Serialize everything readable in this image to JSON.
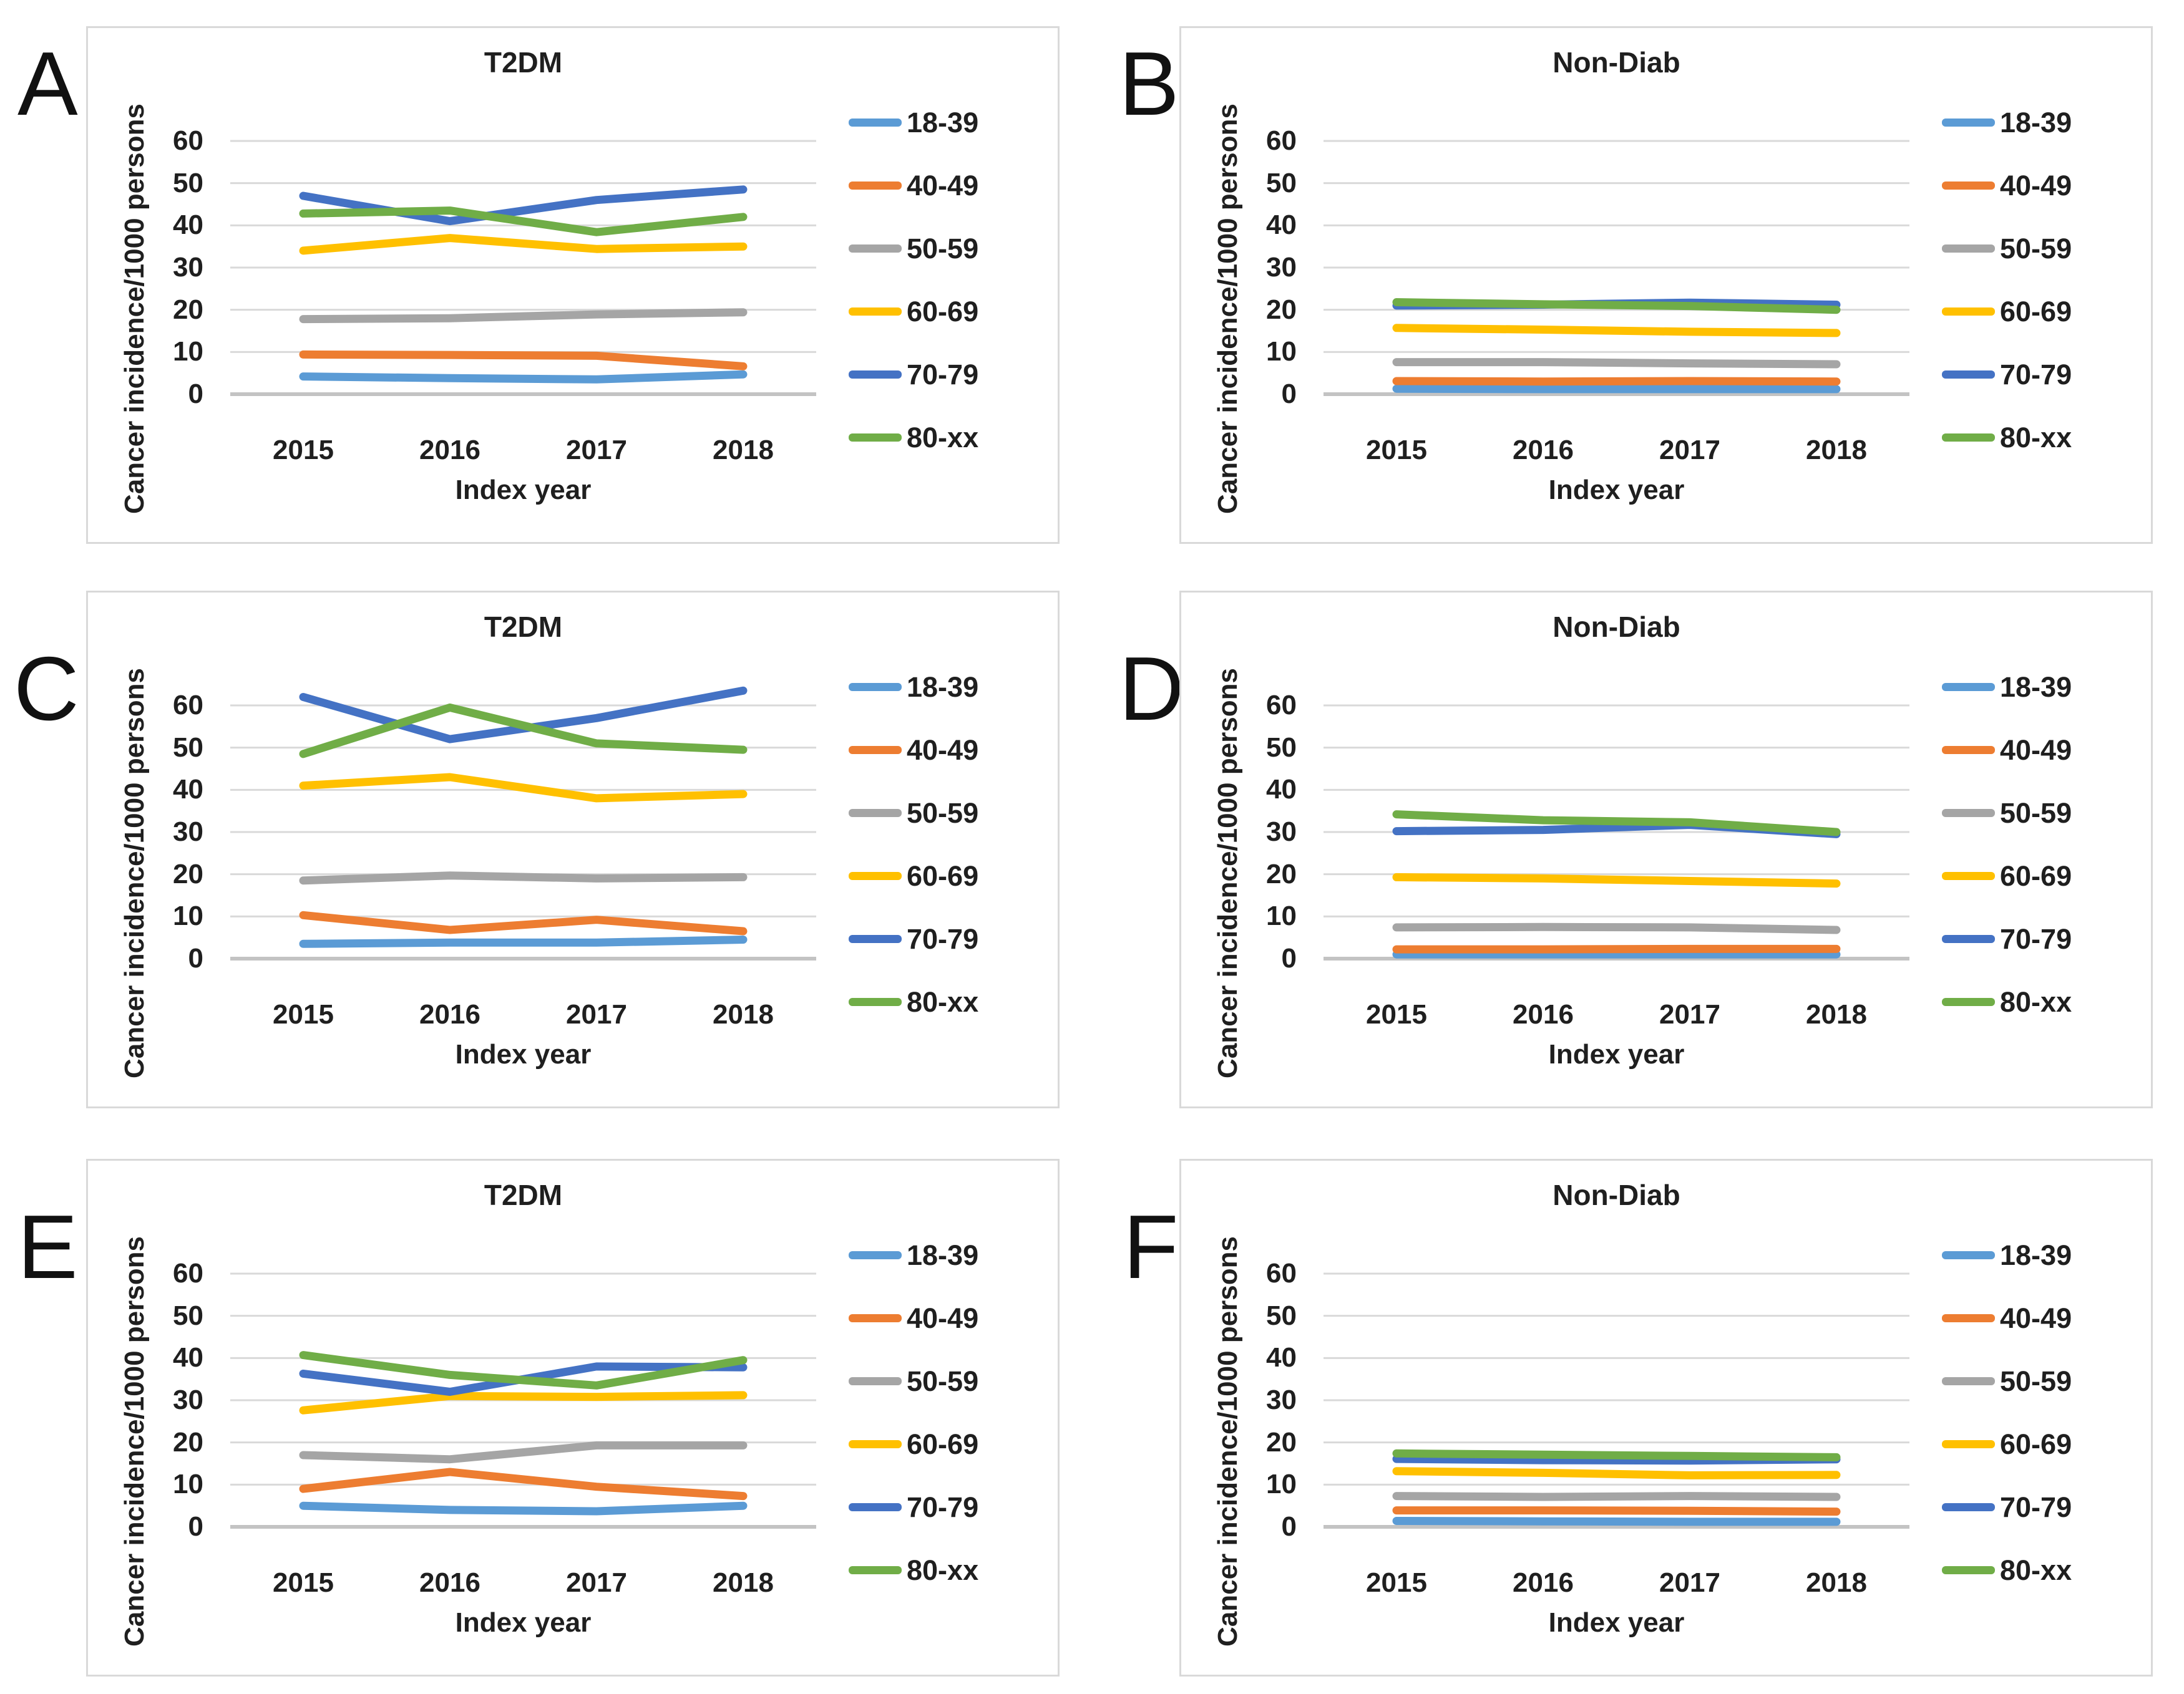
{
  "styles": {
    "grid_color": "#d9d9d9",
    "zero_line_color": "#c3c3c3",
    "panel_border_color": "#d9d9d9",
    "text_color": "#1f1f1f",
    "background": "#ffffff"
  },
  "chart_data": [
    {
      "type": "line",
      "panel_label": "A",
      "title": "T2DM",
      "ylabel": "Cancer incidence/1000 persons",
      "xlabel": "Index year",
      "x": [
        2015,
        2016,
        2017,
        2018
      ],
      "yticks": [
        0,
        10,
        20,
        30,
        40,
        50,
        60
      ],
      "ylim": [
        0,
        60
      ],
      "grid": true,
      "legend_position": "right",
      "series": [
        {
          "name": "18-39",
          "color": "#5B9BD5",
          "values": [
            4.2,
            3.8,
            3.5,
            4.7
          ]
        },
        {
          "name": "40-49",
          "color": "#ED7D31",
          "values": [
            9.4,
            9.3,
            9.1,
            6.6
          ]
        },
        {
          "name": "50-59",
          "color": "#A5A5A5",
          "values": [
            17.8,
            18.0,
            18.9,
            19.4
          ]
        },
        {
          "name": "60-69",
          "color": "#FFC000",
          "values": [
            34.0,
            37.0,
            34.4,
            35.0
          ]
        },
        {
          "name": "70-79",
          "color": "#4472C4",
          "values": [
            47.0,
            41.0,
            46.0,
            48.5
          ]
        },
        {
          "name": "80-xx",
          "color": "#70AD47",
          "values": [
            42.8,
            43.5,
            38.4,
            42.0
          ]
        }
      ]
    },
    {
      "type": "line",
      "panel_label": "B",
      "title": "Non-Diab",
      "ylabel": "Cancer incidence/1000 persons",
      "xlabel": "Index year",
      "x": [
        2015,
        2016,
        2017,
        2018
      ],
      "yticks": [
        0,
        10,
        20,
        30,
        40,
        50,
        60
      ],
      "ylim": [
        0,
        60
      ],
      "grid": true,
      "legend_position": "right",
      "series": [
        {
          "name": "18-39",
          "color": "#5B9BD5",
          "values": [
            1.3,
            1.2,
            1.2,
            1.2
          ]
        },
        {
          "name": "40-49",
          "color": "#ED7D31",
          "values": [
            3.1,
            3.0,
            3.1,
            3.0
          ]
        },
        {
          "name": "50-59",
          "color": "#A5A5A5",
          "values": [
            7.6,
            7.6,
            7.3,
            7.1
          ]
        },
        {
          "name": "60-69",
          "color": "#FFC000",
          "values": [
            15.7,
            15.3,
            14.8,
            14.5
          ]
        },
        {
          "name": "70-79",
          "color": "#4472C4",
          "values": [
            21.0,
            21.2,
            21.7,
            21.2
          ]
        },
        {
          "name": "80-xx",
          "color": "#70AD47",
          "values": [
            21.8,
            21.3,
            20.9,
            20.0
          ]
        }
      ]
    },
    {
      "type": "line",
      "panel_label": "C",
      "title": "T2DM",
      "ylabel": "Cancer incidence/1000 persons",
      "xlabel": "Index year",
      "x": [
        2015,
        2016,
        2017,
        2018
      ],
      "yticks": [
        0,
        10,
        20,
        30,
        40,
        50,
        60
      ],
      "ylim": [
        0,
        65
      ],
      "grid": true,
      "legend_position": "right",
      "series": [
        {
          "name": "18-39",
          "color": "#5B9BD5",
          "values": [
            3.5,
            3.8,
            3.8,
            4.5
          ]
        },
        {
          "name": "40-49",
          "color": "#ED7D31",
          "values": [
            10.3,
            6.8,
            9.2,
            6.5
          ]
        },
        {
          "name": "50-59",
          "color": "#A5A5A5",
          "values": [
            18.5,
            19.7,
            19.0,
            19.3
          ]
        },
        {
          "name": "60-69",
          "color": "#FFC000",
          "values": [
            41.0,
            43.0,
            38.0,
            39.0
          ]
        },
        {
          "name": "70-79",
          "color": "#4472C4",
          "values": [
            62.0,
            52.0,
            57.0,
            63.5
          ]
        },
        {
          "name": "80-xx",
          "color": "#70AD47",
          "values": [
            48.5,
            59.5,
            51.0,
            49.5
          ]
        }
      ]
    },
    {
      "type": "line",
      "panel_label": "D",
      "title": "Non-Diab",
      "ylabel": "Cancer incidence/1000 persons",
      "xlabel": "Index year",
      "x": [
        2015,
        2016,
        2017,
        2018
      ],
      "yticks": [
        0,
        10,
        20,
        30,
        40,
        50,
        60
      ],
      "ylim": [
        0,
        65
      ],
      "grid": true,
      "legend_position": "right",
      "series": [
        {
          "name": "18-39",
          "color": "#5B9BD5",
          "values": [
            1.0,
            1.0,
            1.0,
            1.0
          ]
        },
        {
          "name": "40-49",
          "color": "#ED7D31",
          "values": [
            2.2,
            2.2,
            2.3,
            2.3
          ]
        },
        {
          "name": "50-59",
          "color": "#A5A5A5",
          "values": [
            7.4,
            7.5,
            7.4,
            6.8
          ]
        },
        {
          "name": "60-69",
          "color": "#FFC000",
          "values": [
            19.3,
            19.0,
            18.4,
            17.8
          ]
        },
        {
          "name": "70-79",
          "color": "#4472C4",
          "values": [
            30.2,
            30.5,
            31.7,
            29.5
          ]
        },
        {
          "name": "80-xx",
          "color": "#70AD47",
          "values": [
            34.2,
            32.8,
            32.3,
            30.0
          ]
        }
      ]
    },
    {
      "type": "line",
      "panel_label": "E",
      "title": "T2DM",
      "ylabel": "Cancer incidence/1000 persons",
      "xlabel": "Index year",
      "x": [
        2015,
        2016,
        2017,
        2018
      ],
      "yticks": [
        0,
        10,
        20,
        30,
        40,
        50,
        60
      ],
      "ylim": [
        0,
        60
      ],
      "grid": true,
      "legend_position": "right",
      "series": [
        {
          "name": "18-39",
          "color": "#5B9BD5",
          "values": [
            5.0,
            4.0,
            3.7,
            5.0
          ]
        },
        {
          "name": "40-49",
          "color": "#ED7D31",
          "values": [
            9.0,
            13.0,
            9.5,
            7.3
          ]
        },
        {
          "name": "50-59",
          "color": "#A5A5A5",
          "values": [
            17.0,
            16.0,
            19.3,
            19.3
          ]
        },
        {
          "name": "60-69",
          "color": "#FFC000",
          "values": [
            27.6,
            31.0,
            30.8,
            31.2
          ]
        },
        {
          "name": "70-79",
          "color": "#4472C4",
          "values": [
            36.3,
            32.0,
            38.0,
            37.8
          ]
        },
        {
          "name": "80-xx",
          "color": "#70AD47",
          "values": [
            40.7,
            36.0,
            33.5,
            39.5
          ]
        }
      ]
    },
    {
      "type": "line",
      "panel_label": "F",
      "title": "Non-Diab",
      "ylabel": "Cancer incidence/1000 persons",
      "xlabel": "Index year",
      "x": [
        2015,
        2016,
        2017,
        2018
      ],
      "yticks": [
        0,
        10,
        20,
        30,
        40,
        50,
        60
      ],
      "ylim": [
        0,
        60
      ],
      "grid": true,
      "legend_position": "right",
      "series": [
        {
          "name": "18-39",
          "color": "#5B9BD5",
          "values": [
            1.4,
            1.3,
            1.2,
            1.2
          ]
        },
        {
          "name": "40-49",
          "color": "#ED7D31",
          "values": [
            3.9,
            3.9,
            3.8,
            3.6
          ]
        },
        {
          "name": "50-59",
          "color": "#A5A5A5",
          "values": [
            7.3,
            7.1,
            7.3,
            7.1
          ]
        },
        {
          "name": "60-69",
          "color": "#FFC000",
          "values": [
            13.2,
            12.8,
            12.2,
            12.3
          ]
        },
        {
          "name": "70-79",
          "color": "#4472C4",
          "values": [
            16.1,
            15.8,
            15.7,
            16.0
          ]
        },
        {
          "name": "80-xx",
          "color": "#70AD47",
          "values": [
            17.4,
            17.1,
            16.8,
            16.5
          ]
        }
      ]
    }
  ]
}
